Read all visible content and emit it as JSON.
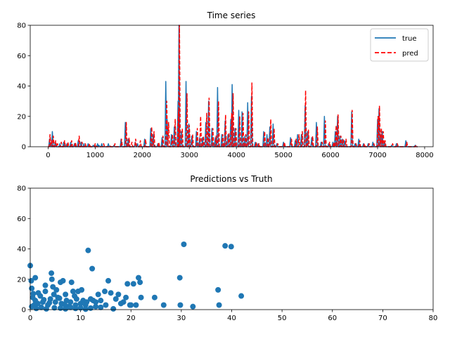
{
  "chart_data": [
    {
      "type": "line",
      "title": "Time series",
      "xlabel": "",
      "ylabel": "",
      "xlim": [
        -380,
        8180
      ],
      "ylim": [
        0,
        80
      ],
      "xticks": [
        0,
        1000,
        2000,
        3000,
        4000,
        5000,
        6000,
        7000,
        8000
      ],
      "yticks": [
        0,
        20,
        40,
        60,
        80
      ],
      "legend": "top-right",
      "series": [
        {
          "name": "true",
          "color": "#1f77b4",
          "style": "solid",
          "spikes": [
            [
              30,
              5
            ],
            [
              60,
              2
            ],
            [
              90,
              10
            ],
            [
              150,
              3
            ],
            [
              250,
              2
            ],
            [
              330,
              3
            ],
            [
              400,
              2
            ],
            [
              480,
              3
            ],
            [
              560,
              2
            ],
            [
              640,
              4
            ],
            [
              700,
              3
            ],
            [
              760,
              2
            ],
            [
              850,
              2
            ],
            [
              960,
              1
            ],
            [
              1050,
              2
            ],
            [
              1080,
              1
            ],
            [
              1140,
              2
            ],
            [
              1280,
              2
            ],
            [
              1400,
              1
            ],
            [
              1550,
              5
            ],
            [
              1640,
              16
            ],
            [
              1700,
              5
            ],
            [
              1850,
              3
            ],
            [
              1900,
              2
            ],
            [
              2050,
              5
            ],
            [
              2180,
              12
            ],
            [
              2230,
              8
            ],
            [
              2330,
              2
            ],
            [
              2420,
              6
            ],
            [
              2500,
              43
            ],
            [
              2530,
              18
            ],
            [
              2620,
              8
            ],
            [
              2680,
              13
            ],
            [
              2760,
              30
            ],
            [
              2780,
              80
            ],
            [
              2830,
              10
            ],
            [
              2930,
              43
            ],
            [
              2990,
              15
            ],
            [
              3050,
              7
            ],
            [
              3150,
              10
            ],
            [
              3220,
              6
            ],
            [
              3280,
              6
            ],
            [
              3350,
              16
            ],
            [
              3410,
              30
            ],
            [
              3480,
              12
            ],
            [
              3550,
              6
            ],
            [
              3600,
              39
            ],
            [
              3690,
              8
            ],
            [
              3760,
              17
            ],
            [
              3820,
              8
            ],
            [
              3880,
              18
            ],
            [
              3910,
              41
            ],
            [
              3970,
              12
            ],
            [
              4050,
              24
            ],
            [
              4120,
              23
            ],
            [
              4180,
              7
            ],
            [
              4240,
              29
            ],
            [
              4320,
              33
            ],
            [
              4400,
              3
            ],
            [
              4460,
              2
            ],
            [
              4580,
              10
            ],
            [
              4650,
              8
            ],
            [
              4710,
              13
            ],
            [
              4780,
              15
            ],
            [
              4860,
              2
            ],
            [
              5000,
              3
            ],
            [
              5150,
              6
            ],
            [
              5250,
              4
            ],
            [
              5300,
              8
            ],
            [
              5380,
              8
            ],
            [
              5460,
              27
            ],
            [
              5510,
              10
            ],
            [
              5600,
              6
            ],
            [
              5700,
              16
            ],
            [
              5800,
              3
            ],
            [
              5870,
              20
            ],
            [
              5960,
              2
            ],
            [
              6050,
              3
            ],
            [
              6100,
              10
            ],
            [
              6150,
              20
            ],
            [
              6200,
              7
            ],
            [
              6250,
              5
            ],
            [
              6300,
              4
            ],
            [
              6450,
              23
            ],
            [
              6520,
              2
            ],
            [
              6600,
              5
            ],
            [
              6700,
              2
            ],
            [
              6800,
              2
            ],
            [
              6900,
              3
            ],
            [
              7000,
              18
            ],
            [
              7030,
              25
            ],
            [
              7070,
              8
            ],
            [
              7100,
              10
            ],
            [
              7150,
              3
            ],
            [
              7300,
              1
            ],
            [
              7400,
              2
            ],
            [
              7600,
              4
            ],
            [
              7800,
              1
            ]
          ]
        },
        {
          "name": "pred",
          "color": "#ff0000",
          "style": "dashed",
          "spikes": [
            [
              40,
              8
            ],
            [
              70,
              4
            ],
            [
              110,
              7
            ],
            [
              160,
              4
            ],
            [
              200,
              2
            ],
            [
              280,
              3
            ],
            [
              350,
              4
            ],
            [
              420,
              3
            ],
            [
              500,
              4
            ],
            [
              580,
              3
            ],
            [
              660,
              7
            ],
            [
              720,
              3
            ],
            [
              790,
              2
            ],
            [
              880,
              2
            ],
            [
              1000,
              2
            ],
            [
              1180,
              2
            ],
            [
              1310,
              1
            ],
            [
              1420,
              2
            ],
            [
              1560,
              5
            ],
            [
              1660,
              16
            ],
            [
              1720,
              6
            ],
            [
              1780,
              3
            ],
            [
              1860,
              5
            ],
            [
              1960,
              4
            ],
            [
              2070,
              5
            ],
            [
              2200,
              13
            ],
            [
              2250,
              10
            ],
            [
              2350,
              3
            ],
            [
              2440,
              7
            ],
            [
              2520,
              30
            ],
            [
              2560,
              16
            ],
            [
              2640,
              8
            ],
            [
              2700,
              18
            ],
            [
              2770,
              24
            ],
            [
              2790,
              80
            ],
            [
              2850,
              12
            ],
            [
              2950,
              35
            ],
            [
              3000,
              14
            ],
            [
              3070,
              8
            ],
            [
              3170,
              12
            ],
            [
              3240,
              20
            ],
            [
              3300,
              7
            ],
            [
              3370,
              22
            ],
            [
              3420,
              32
            ],
            [
              3500,
              12
            ],
            [
              3570,
              7
            ],
            [
              3620,
              30
            ],
            [
              3710,
              8
            ],
            [
              3770,
              21
            ],
            [
              3840,
              9
            ],
            [
              3900,
              22
            ],
            [
              3930,
              35
            ],
            [
              3990,
              12
            ],
            [
              4070,
              20
            ],
            [
              4140,
              22
            ],
            [
              4200,
              8
            ],
            [
              4260,
              23
            ],
            [
              4330,
              42
            ],
            [
              4420,
              3
            ],
            [
              4480,
              2
            ],
            [
              4600,
              10
            ],
            [
              4670,
              6
            ],
            [
              4730,
              18
            ],
            [
              4800,
              12
            ],
            [
              4880,
              2
            ],
            [
              5020,
              3
            ],
            [
              5170,
              5
            ],
            [
              5270,
              5
            ],
            [
              5330,
              8
            ],
            [
              5400,
              10
            ],
            [
              5470,
              37
            ],
            [
              5530,
              11
            ],
            [
              5620,
              7
            ],
            [
              5720,
              13
            ],
            [
              5820,
              3
            ],
            [
              5890,
              17
            ],
            [
              5980,
              3
            ],
            [
              6070,
              3
            ],
            [
              6120,
              14
            ],
            [
              6160,
              21
            ],
            [
              6220,
              7
            ],
            [
              6270,
              5
            ],
            [
              6330,
              5
            ],
            [
              6460,
              24
            ],
            [
              6540,
              2
            ],
            [
              6620,
              4
            ],
            [
              6720,
              2
            ],
            [
              6820,
              2
            ],
            [
              6920,
              2
            ],
            [
              7010,
              20
            ],
            [
              7040,
              27
            ],
            [
              7080,
              12
            ],
            [
              7120,
              10
            ],
            [
              7160,
              4
            ],
            [
              7320,
              2
            ],
            [
              7420,
              2
            ],
            [
              7620,
              3
            ],
            [
              7820,
              1
            ]
          ]
        }
      ]
    },
    {
      "type": "scatter",
      "title": "Predictions vs Truth",
      "xlabel": "",
      "ylabel": "",
      "xlim": [
        0,
        80
      ],
      "ylim": [
        0,
        80
      ],
      "xticks": [
        0,
        10,
        20,
        30,
        40,
        50,
        60,
        70,
        80
      ],
      "yticks": [
        0,
        20,
        40,
        60,
        80
      ],
      "color": "#1f77b4",
      "points": [
        [
          0,
          29
        ],
        [
          0.3,
          14
        ],
        [
          0.2,
          19
        ],
        [
          1,
          21
        ],
        [
          0.5,
          8
        ],
        [
          1,
          6
        ],
        [
          1.5,
          4
        ],
        [
          2,
          9
        ],
        [
          0.3,
          2
        ],
        [
          0.8,
          3
        ],
        [
          2.5,
          5
        ],
        [
          3,
          12
        ],
        [
          3.5,
          3
        ],
        [
          4,
          7
        ],
        [
          4.2,
          24
        ],
        [
          4.3,
          20
        ],
        [
          4.5,
          15
        ],
        [
          4.7,
          10
        ],
        [
          5,
          5
        ],
        [
          5.2,
          13
        ],
        [
          5.5,
          8
        ],
        [
          6,
          18
        ],
        [
          6.2,
          4
        ],
        [
          6.5,
          19
        ],
        [
          7,
          10
        ],
        [
          7.2,
          6
        ],
        [
          7.5,
          2
        ],
        [
          8,
          5
        ],
        [
          8.2,
          18
        ],
        [
          8.5,
          12
        ],
        [
          9,
          3
        ],
        [
          9.2,
          7
        ],
        [
          9.5,
          12
        ],
        [
          10,
          4
        ],
        [
          10.2,
          13
        ],
        [
          10.5,
          6
        ],
        [
          11,
          3
        ],
        [
          11.2,
          5
        ],
        [
          11.5,
          39
        ],
        [
          12,
          7
        ],
        [
          12.3,
          27
        ],
        [
          12.5,
          6
        ],
        [
          13,
          5
        ],
        [
          13.5,
          10
        ],
        [
          14,
          6
        ],
        [
          14.8,
          12
        ],
        [
          15,
          3
        ],
        [
          15.5,
          19
        ],
        [
          16,
          11
        ],
        [
          16.5,
          0.5
        ],
        [
          17,
          7
        ],
        [
          17.5,
          10
        ],
        [
          18,
          4
        ],
        [
          18.5,
          5
        ],
        [
          19,
          8
        ],
        [
          19.3,
          17
        ],
        [
          19.8,
          3
        ],
        [
          20,
          3
        ],
        [
          20.5,
          17
        ],
        [
          21,
          3
        ],
        [
          21.5,
          21
        ],
        [
          21.8,
          18
        ],
        [
          22,
          8
        ],
        [
          24.7,
          8
        ],
        [
          26.5,
          3
        ],
        [
          29.7,
          21
        ],
        [
          29.8,
          3
        ],
        [
          30.5,
          43
        ],
        [
          32.3,
          2
        ],
        [
          37.3,
          13
        ],
        [
          37.5,
          3
        ],
        [
          38.7,
          42
        ],
        [
          39.9,
          41.5
        ],
        [
          41.9,
          9
        ],
        [
          1.2,
          0.8
        ],
        [
          2.2,
          1.5
        ],
        [
          3.2,
          0.5
        ],
        [
          4.8,
          1.2
        ],
        [
          6,
          1
        ],
        [
          7,
          0.5
        ],
        [
          8,
          1.5
        ],
        [
          9,
          0.8
        ],
        [
          10,
          1.2
        ],
        [
          11,
          0.3
        ],
        [
          12,
          1
        ],
        [
          13,
          2
        ],
        [
          14,
          1.5
        ],
        [
          2.7,
          6.5
        ],
        [
          5.8,
          7.5
        ],
        [
          3.8,
          4.5
        ],
        [
          6.8,
          3.5
        ],
        [
          8.8,
          9
        ],
        [
          1.6,
          11
        ],
        [
          3,
          16
        ],
        [
          0.6,
          10.5
        ]
      ]
    }
  ]
}
